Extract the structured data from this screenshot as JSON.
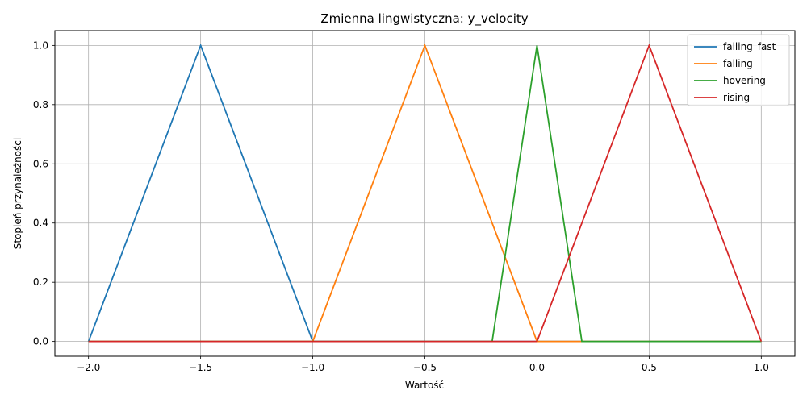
{
  "chart_data": {
    "type": "line",
    "title": "Zmienna lingwistyczna: y_velocity",
    "xlabel": "Wartość",
    "ylabel": "Stopień przynależności",
    "xlim": [
      -2.15,
      1.15
    ],
    "ylim": [
      -0.05,
      1.05
    ],
    "xticks": [
      -2.0,
      -1.5,
      -1.0,
      -0.5,
      0.0,
      0.5,
      1.0
    ],
    "xtick_labels": [
      "−2.0",
      "−1.5",
      "−1.0",
      "−0.5",
      "0.0",
      "0.5",
      "1.0"
    ],
    "yticks": [
      0.0,
      0.2,
      0.4,
      0.6,
      0.8,
      1.0
    ],
    "ytick_labels": [
      "0.0",
      "0.2",
      "0.4",
      "0.6",
      "0.8",
      "1.0"
    ],
    "grid": true,
    "legend_position": "top-right",
    "series": [
      {
        "name": "falling_fast",
        "color": "#1f77b4",
        "x": [
          -2.0,
          -1.5,
          -1.0,
          1.0
        ],
        "y": [
          0,
          1,
          0,
          0
        ]
      },
      {
        "name": "falling",
        "color": "#ff7f0e",
        "x": [
          -2.0,
          -1.0,
          -0.5,
          0.0,
          1.0
        ],
        "y": [
          0,
          0,
          1,
          0,
          0
        ]
      },
      {
        "name": "hovering",
        "color": "#2ca02c",
        "x": [
          -2.0,
          -0.2,
          0.0,
          0.2,
          1.0
        ],
        "y": [
          0,
          0,
          1,
          0,
          0
        ]
      },
      {
        "name": "rising",
        "color": "#d62728",
        "x": [
          -2.0,
          0.0,
          0.5,
          1.0
        ],
        "y": [
          0,
          0,
          1,
          0
        ]
      }
    ]
  }
}
